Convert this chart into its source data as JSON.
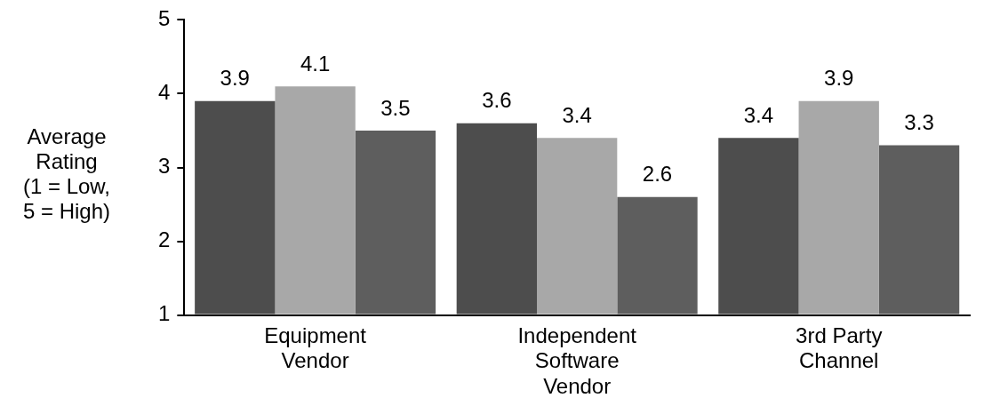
{
  "chart_data": {
    "type": "bar",
    "ylabel": "Average Rating (1 = Low, 5 = High)",
    "categories": [
      "Equipment Vendor",
      "Independent Software Vendor",
      "3rd Party Channel"
    ],
    "series": [
      {
        "color": "#4d4d4d",
        "values": [
          3.9,
          3.6,
          3.4
        ]
      },
      {
        "color": "#a8a8a8",
        "values": [
          4.1,
          3.4,
          3.9
        ]
      },
      {
        "color": "#5e5e5e",
        "values": [
          3.5,
          2.6,
          3.3
        ]
      }
    ],
    "ylim": [
      1,
      5
    ],
    "yticks": [
      1,
      2,
      3,
      4,
      5
    ],
    "grid": false,
    "legend": false,
    "data_labels": true
  }
}
